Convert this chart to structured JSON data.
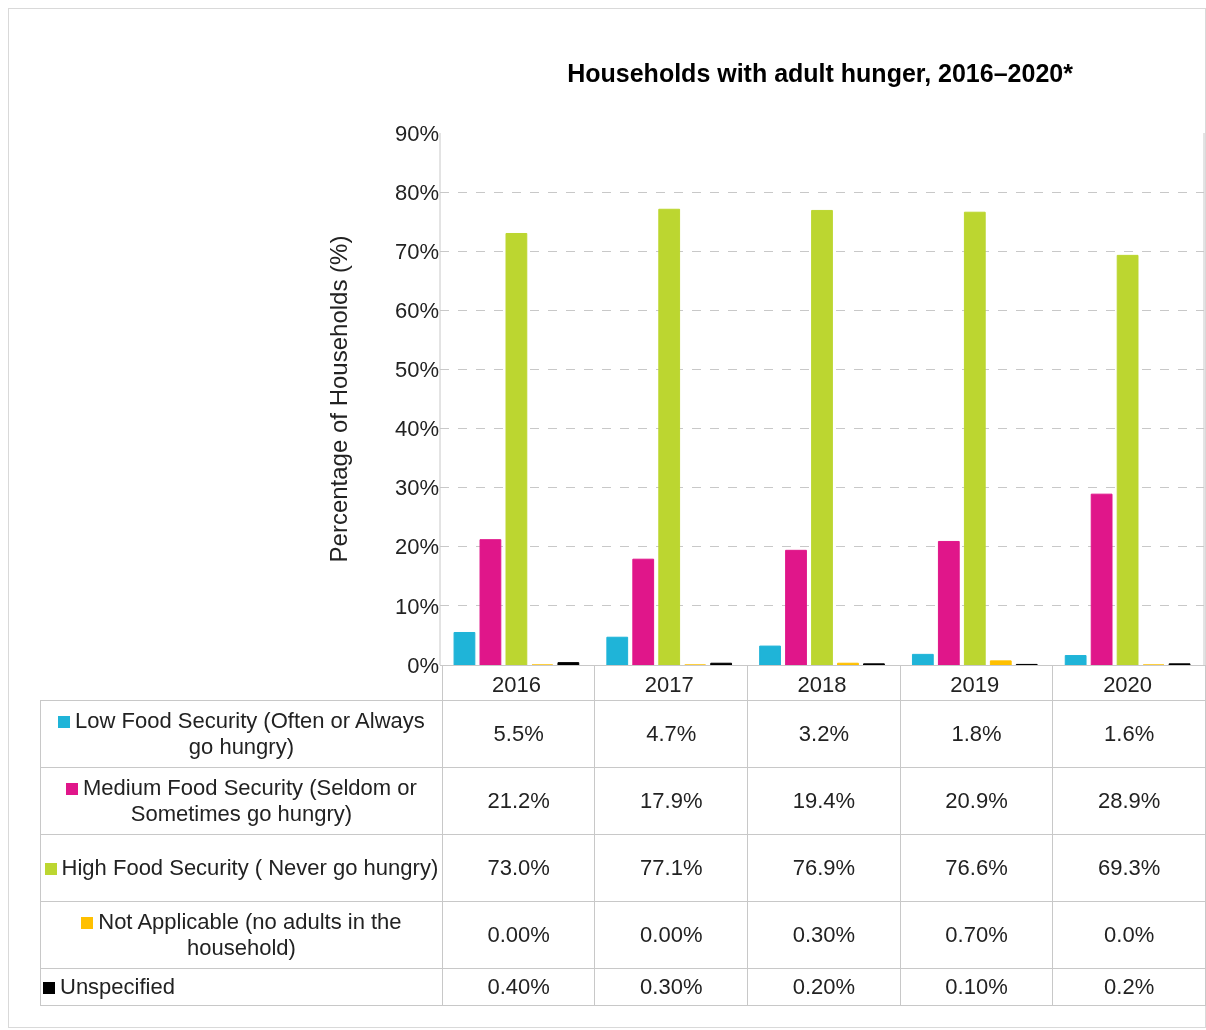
{
  "chart_data": {
    "type": "bar",
    "title": "Households with adult hunger, 2016–2020*",
    "ylabel": "Percentage of Households (%)",
    "categories": [
      "2016",
      "2017",
      "2018",
      "2019",
      "2020"
    ],
    "series": [
      {
        "name": "Low Food Security (Often or Always go hungry)",
        "color": "#1fb4d8",
        "values": [
          5.5,
          4.7,
          3.2,
          1.8,
          1.6
        ],
        "value_labels": [
          "5.5%",
          "4.7%",
          "3.2%",
          "1.8%",
          "1.6%"
        ]
      },
      {
        "name": "Medium Food Security (Seldom or Sometimes go hungry)",
        "color": "#e0168a",
        "values": [
          21.2,
          17.9,
          19.4,
          20.9,
          28.9
        ],
        "value_labels": [
          "21.2%",
          "17.9%",
          "19.4%",
          "20.9%",
          "28.9%"
        ]
      },
      {
        "name": "High Food Security ( Never go hungry)",
        "color": "#bcd630",
        "values": [
          73.0,
          77.1,
          76.9,
          76.6,
          69.3
        ],
        "value_labels": [
          "73.0%",
          "77.1%",
          "76.9%",
          "76.6%",
          "69.3%"
        ]
      },
      {
        "name": "Not Applicable (no adults in the household)",
        "color": "#ffc000",
        "values": [
          0.0,
          0.0,
          0.3,
          0.7,
          0.0
        ],
        "value_labels": [
          "0.00%",
          "0.00%",
          "0.30%",
          "0.70%",
          "0.0%"
        ]
      },
      {
        "name": "Unspecified",
        "color": "#000000",
        "values": [
          0.4,
          0.3,
          0.2,
          0.1,
          0.2
        ],
        "value_labels": [
          "0.40%",
          "0.30%",
          "0.20%",
          "0.10%",
          "0.2%"
        ]
      }
    ],
    "ylim": [
      0,
      90
    ],
    "yticks": [
      {
        "value": 0,
        "label": "0%"
      },
      {
        "value": 10,
        "label": "10%"
      },
      {
        "value": 20,
        "label": "20%"
      },
      {
        "value": 30,
        "label": "30%"
      },
      {
        "value": 40,
        "label": "40%"
      },
      {
        "value": 50,
        "label": "50%"
      },
      {
        "value": 60,
        "label": "60%"
      },
      {
        "value": 70,
        "label": "70%"
      },
      {
        "value": 80,
        "label": "80%"
      },
      {
        "value": 90,
        "label": "90%"
      }
    ],
    "grid": "y",
    "legend": "bottom"
  }
}
